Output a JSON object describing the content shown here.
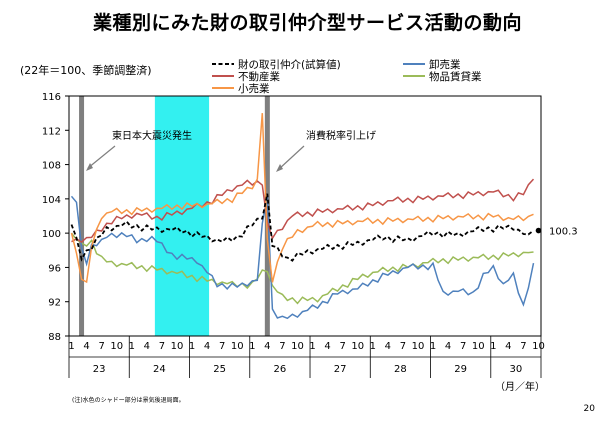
{
  "header": {
    "title": "業種別にみた財の取引仲介型サービス活動の動向",
    "base_note": "(22年＝100、季節調整済)"
  },
  "footer": {
    "note": "(注)水色のシャドー部分は景気後退局面。",
    "page_number": "20"
  },
  "chart_data": {
    "type": "line",
    "title": "業種別にみた財の取引仲介型サービス活動の動向",
    "ylim": [
      88,
      116
    ],
    "yticks": [
      88,
      92,
      96,
      100,
      104,
      108,
      112,
      116
    ],
    "month_labels": [
      "1",
      "4",
      "7",
      "10",
      "1",
      "4",
      "7",
      "10",
      "1",
      "4",
      "7",
      "10",
      "1",
      "4",
      "7",
      "10",
      "1",
      "4",
      "7",
      "10",
      "1",
      "4",
      "7",
      "10",
      "1",
      "4",
      "7",
      "10",
      "1",
      "4",
      "7",
      "10"
    ],
    "year_labels": [
      "23",
      "24",
      "25",
      "26",
      "27",
      "28",
      "29",
      "30"
    ],
    "x_unit_label": "（月／年）",
    "start": "2011-01",
    "end": "2018-10",
    "annotations": [
      {
        "text": "東日本大震災発生",
        "month_index": 2
      },
      {
        "text": "消費税率引上げ",
        "month_index": 39
      }
    ],
    "recession_shading": {
      "start_index": 17,
      "end_index": 27,
      "color": "#33f0f0"
    },
    "event_bars": [
      2,
      39
    ],
    "end_label": "100.3",
    "series": [
      {
        "name": "財の取引仲介(試算値)",
        "color": "#000000",
        "style": "dashed",
        "end_value": 100.3,
        "anchors": [
          [
            0,
            101
          ],
          [
            2,
            97.2
          ],
          [
            4,
            98.5
          ],
          [
            7,
            100.5
          ],
          [
            11,
            101
          ],
          [
            16,
            100.5
          ],
          [
            22,
            100.3
          ],
          [
            27,
            99.5
          ],
          [
            30,
            99
          ],
          [
            33,
            99.5
          ],
          [
            36,
            101
          ],
          [
            38,
            102
          ],
          [
            39,
            104.5
          ],
          [
            40,
            98.5
          ],
          [
            43,
            97
          ],
          [
            47,
            97.8
          ],
          [
            52,
            98.4
          ],
          [
            57,
            98.8
          ],
          [
            62,
            99.5
          ],
          [
            67,
            99.2
          ],
          [
            72,
            100
          ],
          [
            77,
            99.8
          ],
          [
            82,
            100.5
          ],
          [
            88,
            100.7
          ],
          [
            91,
            99.5
          ],
          [
            92,
            100.3
          ]
        ]
      },
      {
        "name": "卸売業",
        "color": "#4f81bd",
        "style": "solid",
        "end_value": 96.5,
        "anchors": [
          [
            0,
            104.3
          ],
          [
            1,
            104
          ],
          [
            2,
            98
          ],
          [
            3,
            96.5
          ],
          [
            4,
            98.5
          ],
          [
            7,
            99.5
          ],
          [
            11,
            100
          ],
          [
            13,
            99
          ],
          [
            16,
            99.5
          ],
          [
            20,
            97.5
          ],
          [
            25,
            96.8
          ],
          [
            29,
            94
          ],
          [
            33,
            93.8
          ],
          [
            37,
            94.5
          ],
          [
            38,
            100.8
          ],
          [
            39,
            104.5
          ],
          [
            40,
            91
          ],
          [
            42,
            90
          ],
          [
            45,
            90.5
          ],
          [
            49,
            91.5
          ],
          [
            53,
            93
          ],
          [
            57,
            93.5
          ],
          [
            62,
            95
          ],
          [
            67,
            96
          ],
          [
            72,
            96.2
          ],
          [
            74,
            93
          ],
          [
            77,
            93.2
          ],
          [
            80,
            93
          ],
          [
            82,
            95
          ],
          [
            84,
            96
          ],
          [
            86,
            94
          ],
          [
            88,
            95
          ],
          [
            90,
            91.5
          ],
          [
            92,
            96.5
          ]
        ]
      },
      {
        "name": "不動産業",
        "color": "#c0504d",
        "style": "solid",
        "end_value": 106.3,
        "anchors": [
          [
            0,
            99
          ],
          [
            4,
            99.5
          ],
          [
            8,
            101.5
          ],
          [
            13,
            102.2
          ],
          [
            17,
            101.8
          ],
          [
            22,
            102.5
          ],
          [
            27,
            103.5
          ],
          [
            32,
            105.2
          ],
          [
            35,
            105.8
          ],
          [
            38,
            106
          ],
          [
            39,
            101
          ],
          [
            40,
            99.5
          ],
          [
            44,
            102
          ],
          [
            49,
            102.5
          ],
          [
            54,
            102.8
          ],
          [
            59,
            103.2
          ],
          [
            64,
            103.8
          ],
          [
            69,
            104
          ],
          [
            74,
            104.3
          ],
          [
            79,
            104.5
          ],
          [
            84,
            104.8
          ],
          [
            88,
            104.2
          ],
          [
            90,
            104.6
          ],
          [
            92,
            106.3
          ]
        ]
      },
      {
        "name": "物品賃貸業",
        "color": "#9bbb59",
        "style": "solid",
        "end_value": 97.8,
        "anchors": [
          [
            0,
            100
          ],
          [
            2,
            98.5
          ],
          [
            4,
            99
          ],
          [
            6,
            97
          ],
          [
            8,
            96.5
          ],
          [
            12,
            96.2
          ],
          [
            17,
            95.8
          ],
          [
            22,
            95.2
          ],
          [
            27,
            94.5
          ],
          [
            32,
            94
          ],
          [
            36,
            94
          ],
          [
            38,
            95.5
          ],
          [
            39,
            95.8
          ],
          [
            40,
            93.8
          ],
          [
            42,
            92.5
          ],
          [
            45,
            92.2
          ],
          [
            49,
            92.3
          ],
          [
            53,
            93.5
          ],
          [
            58,
            95
          ],
          [
            63,
            95.8
          ],
          [
            68,
            96.2
          ],
          [
            73,
            96.8
          ],
          [
            78,
            97
          ],
          [
            83,
            97.2
          ],
          [
            88,
            97.5
          ],
          [
            92,
            97.8
          ]
        ]
      },
      {
        "name": "小売業",
        "color": "#f79646",
        "style": "solid",
        "end_value": 102.2,
        "anchors": [
          [
            0,
            100
          ],
          [
            2,
            95
          ],
          [
            3,
            94
          ],
          [
            4,
            98.5
          ],
          [
            6,
            102
          ],
          [
            8,
            102.5
          ],
          [
            12,
            102.6
          ],
          [
            17,
            102.8
          ],
          [
            22,
            103.2
          ],
          [
            27,
            103.3
          ],
          [
            32,
            104
          ],
          [
            36,
            105.5
          ],
          [
            37,
            106.2
          ],
          [
            38,
            114
          ],
          [
            39,
            99
          ],
          [
            40,
            94.5
          ],
          [
            42,
            98.5
          ],
          [
            45,
            100.2
          ],
          [
            49,
            101
          ],
          [
            54,
            101.2
          ],
          [
            59,
            101.4
          ],
          [
            64,
            101.5
          ],
          [
            69,
            101.6
          ],
          [
            74,
            101.8
          ],
          [
            79,
            101.9
          ],
          [
            84,
            102
          ],
          [
            88,
            101.6
          ],
          [
            91,
            101.8
          ],
          [
            92,
            102.2
          ]
        ]
      }
    ]
  },
  "legend": {
    "items": [
      {
        "label": "財の取引仲介(試算値)",
        "color": "#000000",
        "style": "dashed"
      },
      {
        "label": "卸売業",
        "color": "#4f81bd",
        "style": "solid"
      },
      {
        "label": "不動産業",
        "color": "#c0504d",
        "style": "solid"
      },
      {
        "label": "物品賃貸業",
        "color": "#9bbb59",
        "style": "solid"
      },
      {
        "label": "小売業",
        "color": "#f79646",
        "style": "solid"
      }
    ]
  }
}
